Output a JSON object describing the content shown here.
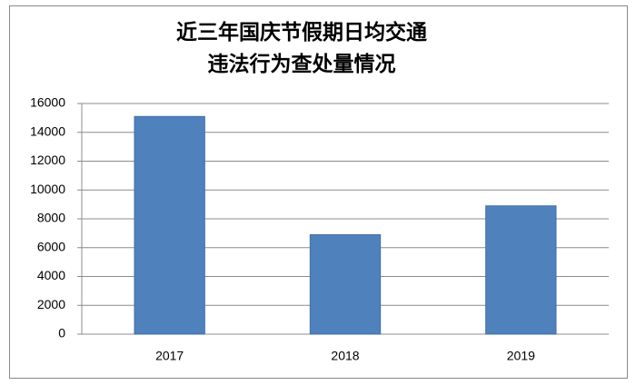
{
  "chart_data": {
    "type": "bar",
    "title": [
      "近三年国庆节假期日均交通",
      "违法行为查处量情况"
    ],
    "categories": [
      "2017",
      "2018",
      "2019"
    ],
    "values": [
      15100,
      6900,
      8900
    ],
    "color": "#4f81bd",
    "ylim": [
      0,
      16000
    ],
    "yticks": [
      0,
      2000,
      4000,
      6000,
      8000,
      10000,
      12000,
      14000,
      16000
    ],
    "grid": true
  }
}
